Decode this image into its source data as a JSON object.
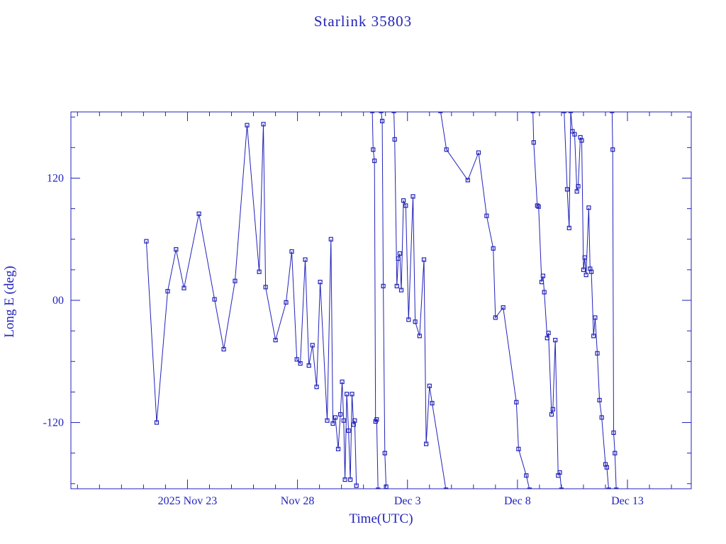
{
  "page": {
    "background": "#ffffff",
    "accent": "#2222bb"
  },
  "chart_data": {
    "type": "line",
    "title": "Starlink 35803",
    "xlabel": "Time(UTC)",
    "ylabel": "Long E (deg)",
    "color": "#2222bb",
    "marker": "open-square",
    "grid": false,
    "legend": "none",
    "x_unit": "days since 2025 Nov 23 00:00 UTC",
    "xlim": [
      -5.3,
      22.9
    ],
    "ylim": [
      -185,
      185
    ],
    "x_major_ticks": [
      {
        "value": 0,
        "label": "2025 Nov 23"
      },
      {
        "value": 5,
        "label": "Nov 28"
      },
      {
        "value": 10,
        "label": "Dec  3"
      },
      {
        "value": 15,
        "label": "Dec  8"
      },
      {
        "value": 20,
        "label": "Dec 13"
      }
    ],
    "x_minor_step": 1,
    "y_major_ticks": [
      {
        "value": -120,
        "label": "-120"
      },
      {
        "value": 0,
        "label": "00"
      },
      {
        "value": 120,
        "label": "120"
      }
    ],
    "y_minor_step": 30,
    "segments": [
      [
        [
          -1.87,
          58
        ],
        [
          -1.4,
          -120
        ],
        [
          -0.9,
          9
        ],
        [
          -0.52,
          50
        ],
        [
          -0.16,
          12
        ],
        [
          0.52,
          85
        ],
        [
          1.23,
          1
        ],
        [
          1.65,
          -48
        ],
        [
          2.16,
          19
        ],
        [
          2.71,
          172
        ],
        [
          3.26,
          28
        ],
        [
          3.45,
          173
        ],
        [
          3.55,
          13
        ],
        [
          4.0,
          -39
        ],
        [
          4.48,
          -2
        ],
        [
          4.74,
          48
        ],
        [
          4.97,
          -58
        ],
        [
          5.13,
          -62
        ],
        [
          5.35,
          40
        ],
        [
          5.52,
          -64
        ],
        [
          5.68,
          -44
        ],
        [
          5.87,
          -85
        ],
        [
          6.03,
          18
        ],
        [
          6.35,
          -118
        ],
        [
          6.52,
          60
        ],
        [
          6.61,
          -121
        ],
        [
          6.72,
          -115
        ],
        [
          6.85,
          -146
        ],
        [
          6.95,
          -112
        ],
        [
          7.03,
          -80
        ],
        [
          7.1,
          -118
        ],
        [
          7.16,
          -176
        ],
        [
          7.24,
          -92
        ],
        [
          7.32,
          -128
        ],
        [
          7.4,
          -176
        ],
        [
          7.48,
          -92
        ],
        [
          7.55,
          -122
        ],
        [
          7.6,
          -118
        ],
        [
          7.68,
          -182
        ]
      ],
      [
        [
          8.4,
          186
        ],
        [
          8.44,
          148
        ],
        [
          8.5,
          137
        ],
        [
          8.55,
          -119
        ],
        [
          8.6,
          -117
        ],
        [
          8.66,
          -186
        ]
      ],
      [
        [
          8.8,
          186
        ],
        [
          8.85,
          176
        ],
        [
          8.9,
          14
        ],
        [
          8.97,
          -150
        ],
        [
          9.03,
          -183
        ]
      ],
      [
        [
          9.38,
          186
        ],
        [
          9.42,
          158
        ],
        [
          9.52,
          14
        ],
        [
          9.58,
          41
        ],
        [
          9.65,
          46
        ],
        [
          9.72,
          10
        ],
        [
          9.82,
          98
        ],
        [
          9.92,
          93
        ],
        [
          10.05,
          -19
        ],
        [
          10.25,
          102
        ],
        [
          10.35,
          -21
        ],
        [
          10.55,
          -35
        ],
        [
          10.75,
          40
        ],
        [
          10.85,
          -141
        ],
        [
          11.0,
          -84
        ],
        [
          11.12,
          -101
        ],
        [
          11.75,
          -186
        ]
      ],
      [
        [
          11.5,
          186
        ],
        [
          11.77,
          148
        ],
        [
          12.74,
          118
        ],
        [
          13.23,
          145
        ],
        [
          13.6,
          83
        ],
        [
          13.9,
          51
        ],
        [
          14.0,
          -17
        ],
        [
          14.35,
          -7
        ],
        [
          14.95,
          -100
        ],
        [
          15.05,
          -146
        ],
        [
          15.4,
          -172
        ],
        [
          15.55,
          -186
        ]
      ],
      [
        [
          15.7,
          186
        ],
        [
          15.74,
          155
        ],
        [
          15.9,
          93
        ],
        [
          15.96,
          92
        ],
        [
          16.1,
          18
        ],
        [
          16.16,
          24
        ],
        [
          16.22,
          8
        ],
        [
          16.35,
          -37
        ],
        [
          16.41,
          -32
        ],
        [
          16.55,
          -112
        ],
        [
          16.61,
          -107
        ],
        [
          16.72,
          -39
        ],
        [
          16.85,
          -172
        ],
        [
          16.92,
          -169
        ],
        [
          17.0,
          -186
        ]
      ],
      [
        [
          17.12,
          186
        ],
        [
          17.26,
          109
        ],
        [
          17.35,
          71
        ],
        [
          17.42,
          186
        ],
        [
          17.5,
          166
        ],
        [
          17.6,
          163
        ],
        [
          17.7,
          107
        ],
        [
          17.76,
          112
        ],
        [
          17.86,
          160
        ],
        [
          17.92,
          157
        ],
        [
          18.0,
          30
        ],
        [
          18.06,
          42
        ],
        [
          18.12,
          25
        ],
        [
          18.24,
          91
        ],
        [
          18.3,
          31
        ],
        [
          18.36,
          28
        ],
        [
          18.46,
          -35
        ],
        [
          18.53,
          -17
        ],
        [
          18.63,
          -52
        ],
        [
          18.73,
          -98
        ],
        [
          18.83,
          -115
        ],
        [
          19.0,
          -161
        ],
        [
          19.06,
          -164
        ],
        [
          19.15,
          -186
        ]
      ],
      [
        [
          19.3,
          186
        ],
        [
          19.33,
          148
        ],
        [
          19.37,
          -130
        ],
        [
          19.43,
          -150
        ],
        [
          19.49,
          -186
        ]
      ]
    ]
  }
}
